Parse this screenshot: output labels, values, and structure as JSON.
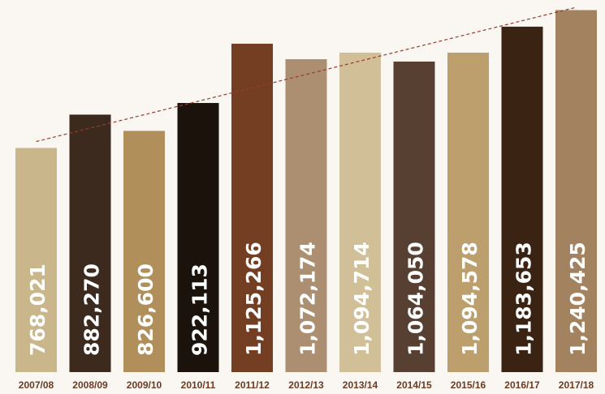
{
  "chart_data": {
    "type": "bar",
    "categories": [
      "2007/08",
      "2008/09",
      "2009/10",
      "2010/11",
      "2011/12",
      "2012/13",
      "2013/14",
      "2014/15",
      "2015/16",
      "2016/17",
      "2017/18"
    ],
    "values": [
      768021,
      882270,
      826600,
      922113,
      1125266,
      1072174,
      1094714,
      1064050,
      1094578,
      1183653,
      1240425
    ],
    "value_labels": [
      "768,021",
      "882,270",
      "826,600",
      "922,113",
      "1,125,266",
      "1,072,174",
      "1,094,714",
      "1,064,050",
      "1,094,578",
      "1,183,653",
      "1,240,425"
    ],
    "bar_colors": [
      "#c9b68a",
      "#3c2a1e",
      "#b08f5a",
      "#1c120c",
      "#733e22",
      "#ab8f70",
      "#d1bf97",
      "#573f31",
      "#bc9f6c",
      "#3b2314",
      "#a3825f"
    ],
    "title": "",
    "xlabel": "",
    "ylabel": "",
    "ylim": [
      0,
      1250000
    ],
    "grid": false,
    "legend": "none",
    "trendline": {
      "from": 790000,
      "to": 1250000,
      "color": "#9a3a2a",
      "style": "dashed"
    },
    "label_color": "#ffffff",
    "tick_label_color": "#6b3a22"
  }
}
